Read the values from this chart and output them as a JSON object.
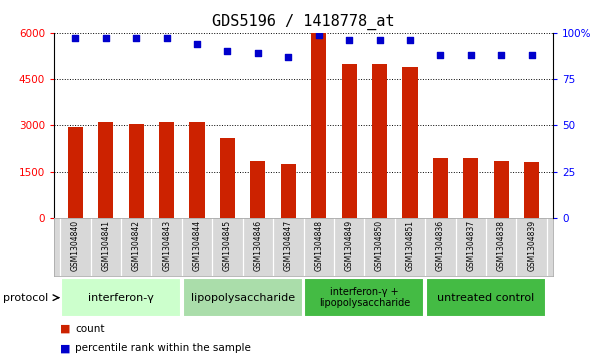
{
  "title": "GDS5196 / 1418778_at",
  "samples": [
    "GSM1304840",
    "GSM1304841",
    "GSM1304842",
    "GSM1304843",
    "GSM1304844",
    "GSM1304845",
    "GSM1304846",
    "GSM1304847",
    "GSM1304848",
    "GSM1304849",
    "GSM1304850",
    "GSM1304851",
    "GSM1304836",
    "GSM1304837",
    "GSM1304838",
    "GSM1304839"
  ],
  "counts": [
    2950,
    3100,
    3050,
    3100,
    3100,
    2600,
    1850,
    1750,
    6000,
    5000,
    5000,
    4900,
    1950,
    1950,
    1850,
    1800
  ],
  "percentile_ranks": [
    97,
    97,
    97,
    97,
    94,
    90,
    89,
    87,
    99,
    96,
    96,
    96,
    88,
    88,
    88,
    88
  ],
  "groups": [
    {
      "label": "interferon-γ",
      "start": 0,
      "end": 4,
      "color": "#ccffcc"
    },
    {
      "label": "lipopolysaccharide",
      "start": 4,
      "end": 8,
      "color": "#aaddaa"
    },
    {
      "label": "interferon-γ +\nlipopolysaccharide",
      "start": 8,
      "end": 12,
      "color": "#44bb44"
    },
    {
      "label": "untreated control",
      "start": 12,
      "end": 16,
      "color": "#44bb44"
    }
  ],
  "bar_color": "#cc2200",
  "dot_color": "#0000cc",
  "ylim_left": [
    0,
    6000
  ],
  "ylim_right": [
    0,
    100
  ],
  "yticks_left": [
    0,
    1500,
    3000,
    4500,
    6000
  ],
  "yticks_right": [
    0,
    25,
    50,
    75,
    100
  ],
  "bg_color": "white",
  "label_bg": "#d8d8d8",
  "title_fontsize": 11,
  "bar_width": 0.5,
  "xlim": [
    -0.7,
    15.7
  ],
  "legend_items": [
    {
      "color": "#cc2200",
      "label": "count"
    },
    {
      "color": "#0000cc",
      "label": "percentile rank within the sample"
    }
  ]
}
